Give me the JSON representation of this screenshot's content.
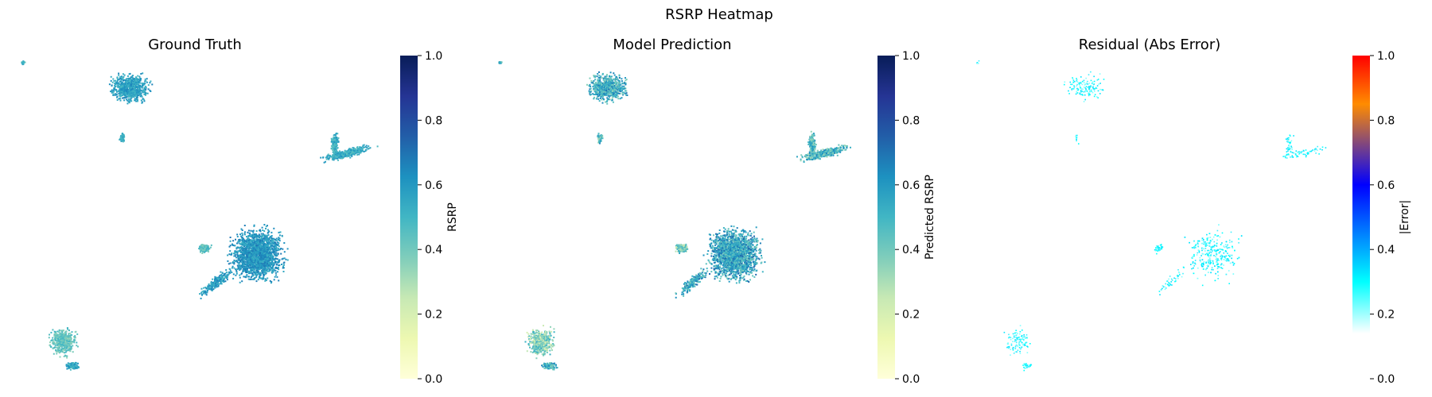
{
  "figure": {
    "title": "RSRP Heatmap"
  },
  "chart_data": [
    {
      "type": "heatmap",
      "title": "Ground Truth",
      "colormap": "YlGnBu",
      "colorbar": {
        "label": "RSRP",
        "range": [
          0.0,
          1.0
        ],
        "ticks": [
          "0.0",
          "0.2",
          "0.4",
          "0.6",
          "0.8",
          "1.0"
        ]
      },
      "axes_visible": false
    },
    {
      "type": "heatmap",
      "title": "Model Prediction",
      "colormap": "YlGnBu",
      "colorbar": {
        "label": "Predicted RSRP",
        "range": [
          0.0,
          1.0
        ],
        "ticks": [
          "0.0",
          "0.2",
          "0.4",
          "0.6",
          "0.8",
          "1.0"
        ]
      },
      "axes_visible": false
    },
    {
      "type": "heatmap",
      "title": "Residual (Abs Error)",
      "colormap": "jet_white_low",
      "colorbar": {
        "label": "|Error|",
        "range": [
          0.0,
          1.0
        ],
        "ticks": [
          "0.0",
          "0.2",
          "0.4",
          "0.6",
          "0.8",
          "1.0"
        ]
      },
      "axes_visible": false
    }
  ],
  "colors": {
    "ylgnbu": [
      "#ffffd9",
      "#edf8b1",
      "#c7e9b4",
      "#7fcdbb",
      "#41b6c4",
      "#1d91c0",
      "#225ea8",
      "#253494",
      "#081d58"
    ],
    "residual": [
      "#ffffff",
      "#00ffff",
      "#0000ff",
      "#ff8c00",
      "#ff0000"
    ]
  }
}
